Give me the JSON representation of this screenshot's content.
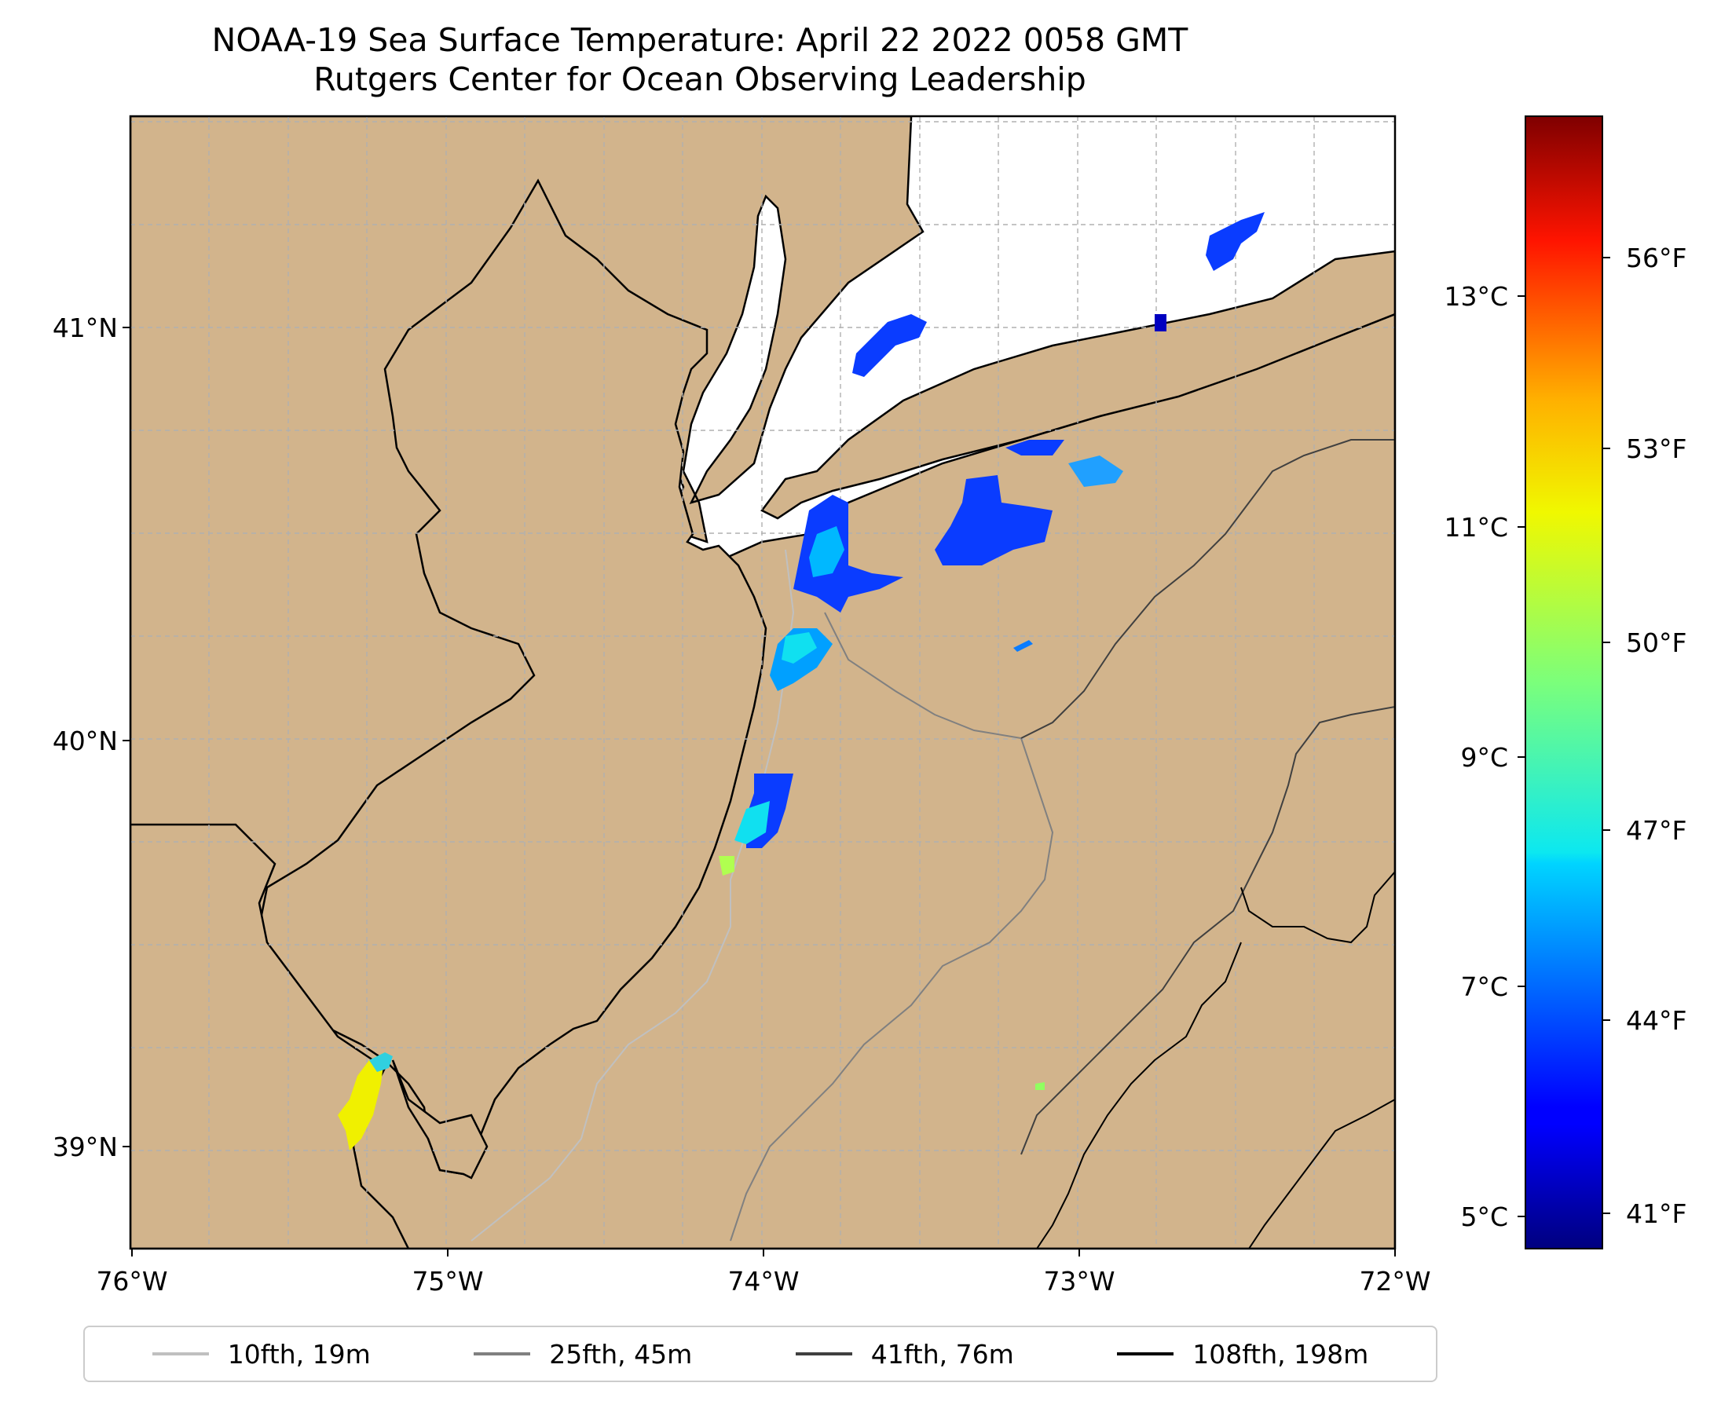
{
  "title": {
    "line1": "NOAA-19 Sea Surface Temperature: April 22 2022 0058 GMT",
    "line2": "Rutgers Center for Ocean Observing Leadership"
  },
  "map": {
    "lon_ticks": [
      "76°W",
      "75°W",
      "74°W",
      "73°W",
      "72°W"
    ],
    "lat_ticks": [
      "41°N",
      "40°N",
      "39°N"
    ],
    "lon_range": [
      -76,
      -72
    ],
    "lat_range": [
      38.75,
      41.55
    ],
    "colors": {
      "land": "#d2b48c",
      "ocean": "#ffffff",
      "coast": "#000000",
      "grid": "#b0b0b0"
    }
  },
  "colorbar": {
    "celsius_ticks": [
      "13°C",
      "11°C",
      "9°C",
      "7°C",
      "5°C"
    ],
    "fahrenheit_ticks": [
      "56°F",
      "53°F",
      "50°F",
      "47°F",
      "44°F",
      "41°F"
    ],
    "colormap": "jet"
  },
  "legend": {
    "items": [
      {
        "label": "10fth, 19m",
        "color": "#c0c0c0"
      },
      {
        "label": "25fth, 45m",
        "color": "#808080"
      },
      {
        "label": "41fth, 76m",
        "color": "#404040"
      },
      {
        "label": "108fth, 198m",
        "color": "#000000"
      }
    ]
  }
}
